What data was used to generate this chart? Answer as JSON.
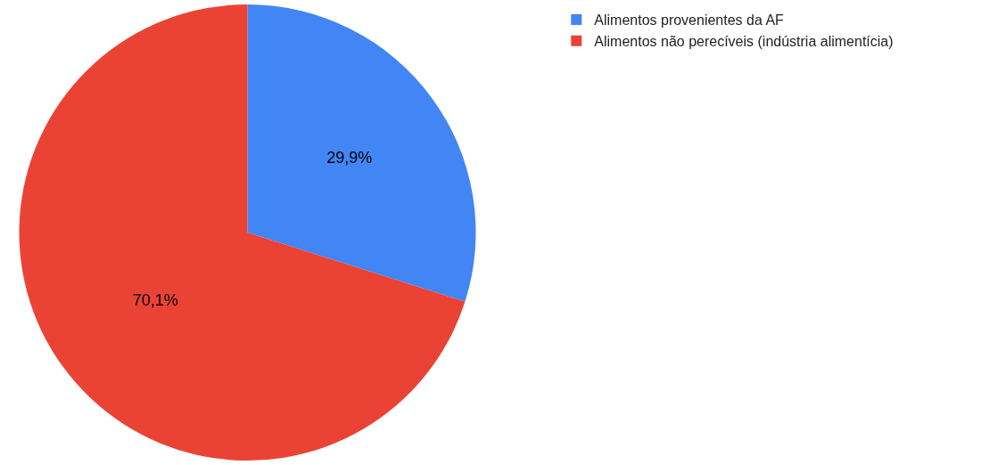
{
  "chart_data": {
    "type": "pie",
    "categories": [
      "Alimentos provenientes da AF",
      "Alimentos não perecíveis (indústria alimentícia)"
    ],
    "values": [
      29.9,
      70.1
    ],
    "colors": [
      "#4285f4",
      "#ea4335"
    ],
    "value_labels": [
      "29,9%",
      "70,1%"
    ],
    "legend": "top right"
  }
}
